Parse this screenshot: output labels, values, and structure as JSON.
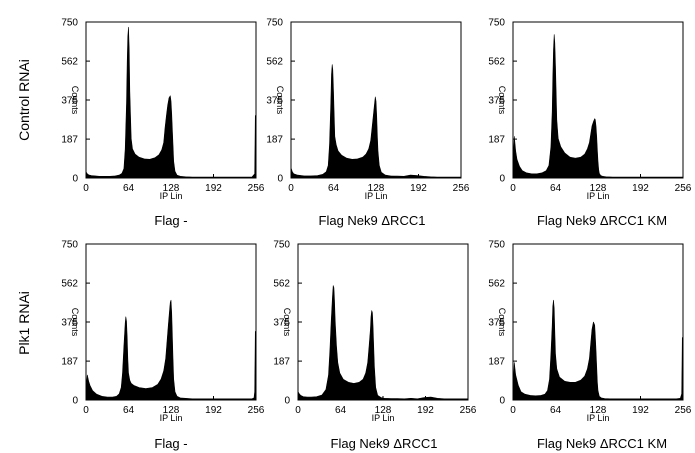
{
  "row_labels": [
    "Control RNAi",
    "Plk1 RNAi"
  ],
  "captions": [
    "Flag -",
    "Flag Nek9 ΔRCC1",
    "Flag Nek9 ΔRCC1 KM"
  ],
  "chart_data": [
    {
      "type": "area",
      "row": 0,
      "col": 0,
      "xlabel": "IP Lin",
      "ylabel": "Counts",
      "xlim": [
        0,
        256
      ],
      "ylim": [
        0,
        750
      ],
      "xticks": [
        0,
        64,
        128,
        192,
        256
      ],
      "yticks": [
        0,
        187,
        375,
        562,
        750
      ],
      "x": [
        0,
        2,
        4,
        8,
        14,
        20,
        28,
        36,
        44,
        50,
        54,
        57,
        59,
        61,
        62,
        63,
        64,
        65,
        66,
        68,
        70,
        74,
        80,
        88,
        96,
        104,
        110,
        114,
        117,
        119,
        121,
        123,
        125,
        127,
        128,
        129,
        130,
        131,
        132,
        134,
        137,
        142,
        150,
        160,
        170,
        180,
        190,
        200,
        210,
        220,
        230,
        240,
        250,
        254,
        255,
        256
      ],
      "values": [
        30,
        20,
        15,
        12,
        10,
        8,
        8,
        8,
        10,
        14,
        22,
        45,
        140,
        360,
        560,
        680,
        725,
        620,
        420,
        190,
        140,
        115,
        100,
        92,
        90,
        98,
        112,
        135,
        170,
        240,
        300,
        350,
        385,
        395,
        370,
        310,
        240,
        160,
        80,
        32,
        14,
        8,
        6,
        5,
        5,
        5,
        5,
        5,
        5,
        5,
        5,
        5,
        5,
        20,
        300,
        0
      ]
    },
    {
      "type": "area",
      "row": 0,
      "col": 1,
      "xlabel": "IP Lin",
      "ylabel": "Counts",
      "xlim": [
        0,
        256
      ],
      "ylim": [
        0,
        750
      ],
      "xticks": [
        0,
        64,
        128,
        192,
        256
      ],
      "yticks": [
        0,
        187,
        375,
        562,
        750
      ],
      "x": [
        0,
        2,
        4,
        10,
        20,
        30,
        40,
        48,
        53,
        56,
        58,
        60,
        61,
        62,
        63,
        64,
        65,
        66,
        68,
        71,
        76,
        84,
        92,
        100,
        108,
        113,
        117,
        120,
        122,
        124,
        126,
        127,
        128,
        129,
        130,
        131,
        133,
        136,
        142,
        150,
        160,
        170,
        180,
        190,
        200,
        210,
        220,
        230,
        240,
        250,
        256
      ],
      "values": [
        50,
        30,
        20,
        14,
        10,
        10,
        12,
        18,
        30,
        60,
        160,
        360,
        500,
        545,
        520,
        420,
        300,
        200,
        160,
        130,
        110,
        95,
        90,
        92,
        100,
        115,
        140,
        180,
        240,
        300,
        365,
        390,
        370,
        300,
        210,
        130,
        60,
        28,
        14,
        10,
        9,
        8,
        14,
        12,
        8,
        6,
        5,
        5,
        5,
        5,
        5
      ]
    },
    {
      "type": "area",
      "row": 0,
      "col": 2,
      "xlabel": "IP Lin",
      "ylabel": "Counts",
      "xlim": [
        0,
        256
      ],
      "ylim": [
        0,
        750
      ],
      "xticks": [
        0,
        64,
        128,
        192,
        256
      ],
      "yticks": [
        0,
        187,
        375,
        562,
        750
      ],
      "x": [
        0,
        2,
        4,
        6,
        10,
        14,
        20,
        28,
        36,
        44,
        50,
        54,
        57,
        59,
        60,
        61,
        62,
        63,
        64,
        65,
        66,
        68,
        72,
        78,
        86,
        94,
        102,
        108,
        112,
        115,
        117,
        119,
        121,
        123,
        124,
        125,
        126,
        127,
        128,
        129,
        130,
        132,
        135,
        140,
        150,
        160,
        170,
        180,
        190,
        200,
        210,
        220,
        230,
        240,
        250,
        256
      ],
      "values": [
        60,
        200,
        130,
        90,
        55,
        35,
        25,
        20,
        20,
        25,
        35,
        60,
        150,
        320,
        480,
        620,
        690,
        650,
        540,
        400,
        280,
        190,
        150,
        120,
        100,
        95,
        100,
        115,
        140,
        170,
        210,
        250,
        270,
        285,
        280,
        250,
        200,
        140,
        80,
        40,
        22,
        12,
        8,
        6,
        5,
        5,
        5,
        5,
        5,
        5,
        5,
        5,
        5,
        5,
        5,
        5
      ]
    },
    {
      "type": "area",
      "row": 1,
      "col": 0,
      "xlabel": "IP Lin",
      "ylabel": "Counts",
      "xlim": [
        0,
        256
      ],
      "ylim": [
        0,
        750
      ],
      "xticks": [
        0,
        64,
        128,
        192,
        256
      ],
      "yticks": [
        0,
        187,
        375,
        562,
        750
      ],
      "x": [
        0,
        2,
        4,
        6,
        10,
        16,
        24,
        32,
        40,
        46,
        50,
        53,
        55,
        57,
        59,
        60,
        61,
        62,
        63,
        64,
        66,
        68,
        72,
        80,
        90,
        100,
        108,
        113,
        117,
        120,
        122,
        124,
        126,
        127,
        128,
        129,
        130,
        131,
        132,
        134,
        137,
        142,
        150,
        160,
        170,
        180,
        190,
        200,
        210,
        220,
        230,
        240,
        250,
        253,
        254,
        255,
        256
      ],
      "values": [
        50,
        120,
        90,
        70,
        45,
        28,
        18,
        14,
        14,
        18,
        30,
        60,
        130,
        260,
        370,
        400,
        380,
        300,
        200,
        130,
        95,
        80,
        70,
        60,
        55,
        60,
        75,
        100,
        140,
        200,
        280,
        360,
        440,
        470,
        480,
        420,
        320,
        200,
        100,
        40,
        18,
        10,
        8,
        6,
        6,
        6,
        6,
        6,
        6,
        6,
        6,
        6,
        6,
        10,
        40,
        330,
        0
      ]
    },
    {
      "type": "area",
      "row": 1,
      "col": 1,
      "xlabel": "IP Lin",
      "ylabel": "Counts",
      "xlim": [
        0,
        256
      ],
      "ylim": [
        0,
        750
      ],
      "xticks": [
        0,
        64,
        128,
        192,
        256
      ],
      "yticks": [
        0,
        187,
        375,
        562,
        750
      ],
      "x": [
        0,
        2,
        4,
        8,
        14,
        20,
        28,
        36,
        42,
        46,
        48,
        50,
        52,
        53,
        54,
        55,
        56,
        58,
        60,
        63,
        68,
        76,
        84,
        92,
        98,
        102,
        105,
        107,
        109,
        110,
        111,
        112,
        113,
        114,
        115,
        117,
        120,
        125,
        130,
        140,
        150,
        160,
        170,
        180,
        190,
        200,
        210,
        220,
        230,
        240,
        250,
        256
      ],
      "values": [
        40,
        30,
        22,
        16,
        14,
        14,
        16,
        24,
        50,
        120,
        240,
        380,
        500,
        550,
        540,
        480,
        380,
        260,
        180,
        130,
        100,
        85,
        80,
        85,
        100,
        130,
        180,
        260,
        340,
        400,
        430,
        420,
        360,
        260,
        160,
        60,
        22,
        12,
        8,
        7,
        7,
        6,
        8,
        6,
        12,
        14,
        8,
        6,
        6,
        6,
        6,
        6
      ]
    },
    {
      "type": "area",
      "row": 1,
      "col": 2,
      "xlabel": "IP Lin",
      "ylabel": "Counts",
      "xlim": [
        0,
        256
      ],
      "ylim": [
        0,
        750
      ],
      "xticks": [
        0,
        64,
        128,
        192,
        256
      ],
      "yticks": [
        0,
        187,
        375,
        562,
        750
      ],
      "x": [
        0,
        2,
        4,
        8,
        12,
        18,
        26,
        34,
        42,
        48,
        52,
        55,
        57,
        59,
        60,
        61,
        62,
        63,
        64,
        66,
        70,
        78,
        86,
        94,
        102,
        108,
        112,
        115,
        117,
        119,
        121,
        123,
        124,
        125,
        126,
        127,
        128,
        130,
        133,
        138,
        146,
        156,
        166,
        176,
        186,
        196,
        206,
        216,
        226,
        236,
        246,
        252,
        254,
        255,
        256
      ],
      "values": [
        40,
        180,
        120,
        70,
        40,
        28,
        22,
        20,
        22,
        28,
        45,
        100,
        220,
        360,
        450,
        480,
        440,
        330,
        220,
        150,
        110,
        90,
        85,
        85,
        95,
        115,
        150,
        200,
        270,
        340,
        375,
        360,
        310,
        240,
        160,
        90,
        45,
        18,
        10,
        7,
        6,
        6,
        6,
        6,
        6,
        6,
        6,
        6,
        6,
        6,
        6,
        8,
        30,
        300,
        0
      ]
    }
  ]
}
